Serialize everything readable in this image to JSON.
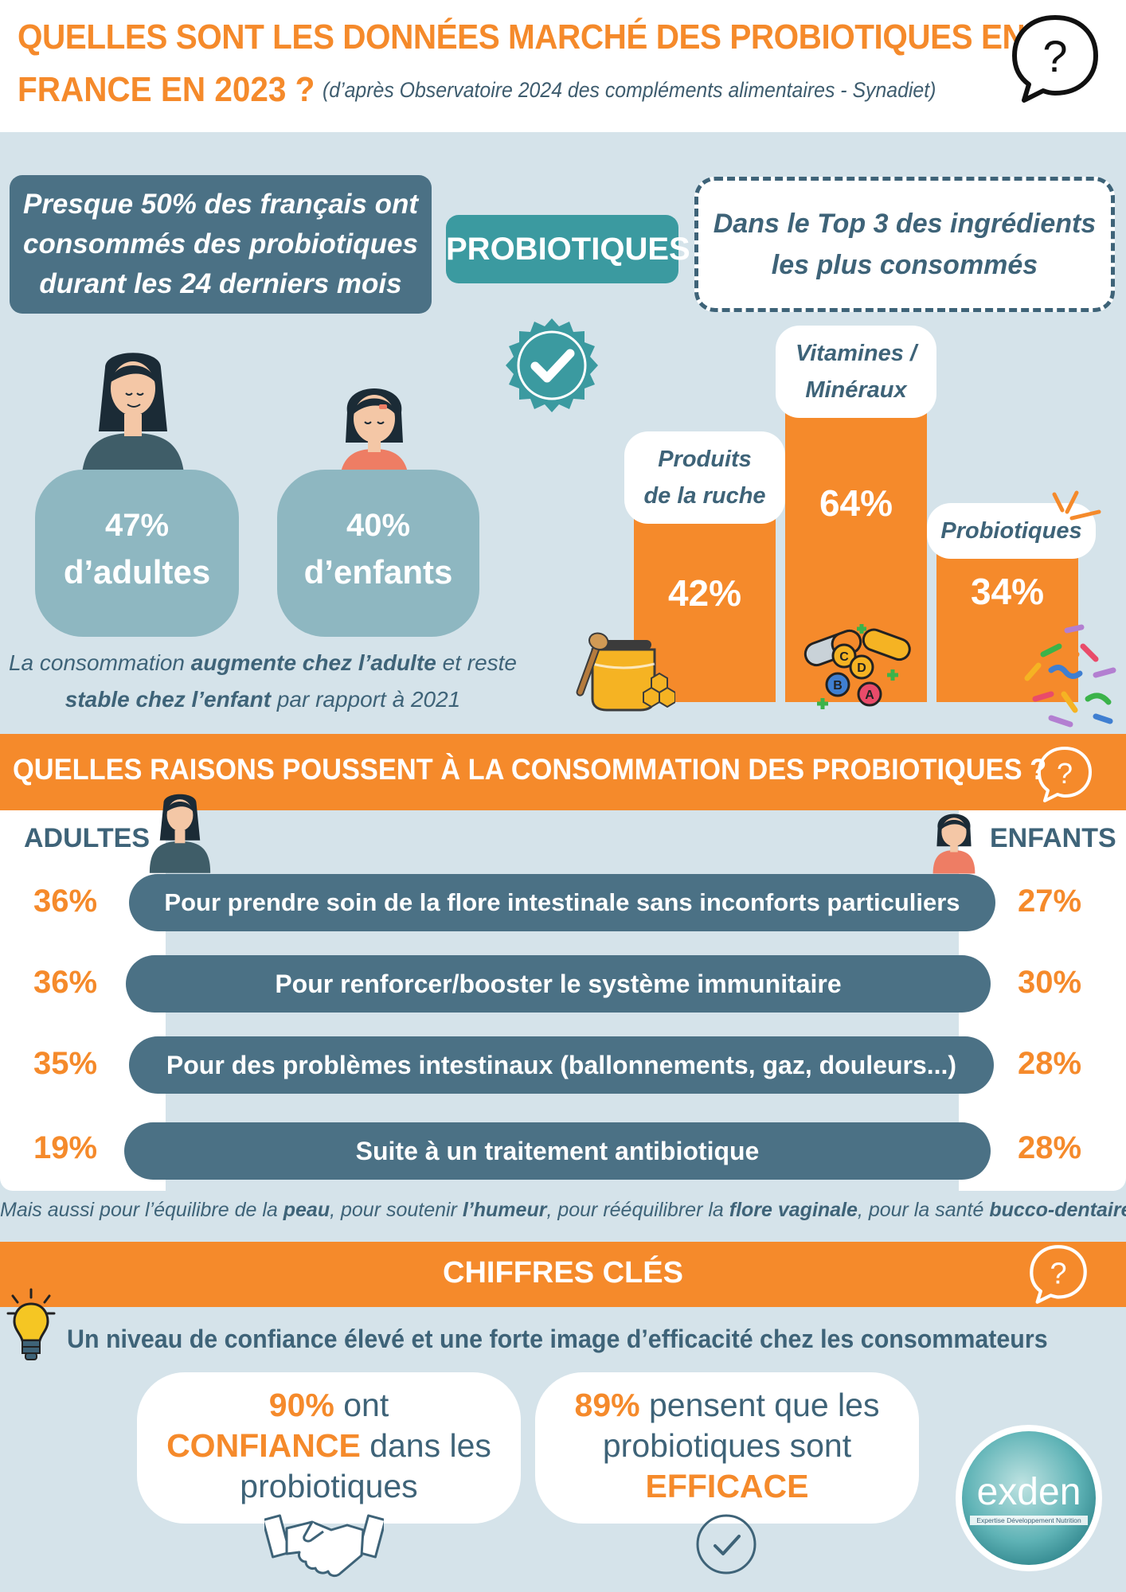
{
  "header": {
    "title_line1": "QUELLES SONT LES DONNÉES MARCHÉ DES PROBIOTIQUES EN",
    "title_line2": "FRANCE EN 2023 ?",
    "source": "(d’après Observatoire 2024 des compléments alimentaires - Synadiet)",
    "question_mark": "?"
  },
  "overview": {
    "headline_line1": "Presque 50% des français ont",
    "headline_line2": "consommés des probiotiques",
    "headline_line3": "durant les 24 derniers mois",
    "probiotiques_label": "PROBIOTIQUES",
    "top3_line1": "Dans le Top 3 des ingrédients",
    "top3_line2": "les plus consommés",
    "adults_pct": "47%",
    "adults_label": "d’adultes",
    "children_pct": "40%",
    "children_label": "d’enfants",
    "note_part1": "La consommation ",
    "note_bold1": "augmente chez l’adulte",
    "note_part2": " et reste",
    "note_bold2": "stable chez l’enfant",
    "note_part3": " par rapport à 2021"
  },
  "chart_data": {
    "type": "bar",
    "categories": [
      "Produits de la ruche",
      "Vitamines / Minéraux",
      "Probiotiques"
    ],
    "label_lines": [
      [
        "Produits",
        "de la ruche"
      ],
      [
        "Vitamines /",
        "Minéraux"
      ],
      [
        "Probiotiques"
      ]
    ],
    "values": [
      42,
      64,
      34
    ],
    "value_labels": [
      "42%",
      "64%",
      "34%"
    ],
    "color": "#f58a2b"
  },
  "reasons": {
    "title": "QUELLES RAISONS POUSSENT À LA CONSOMMATION DES PROBIOTIQUES ?",
    "adults_header": "ADULTES",
    "children_header": "ENFANTS",
    "items": [
      {
        "label": "Pour prendre soin de la flore intestinale sans inconforts particuliers",
        "adults": "36%",
        "children": "27%"
      },
      {
        "label": "Pour renforcer/booster le système immunitaire",
        "adults": "36%",
        "children": "30%"
      },
      {
        "label": "Pour des problèmes intestinaux (ballonnements, gaz, douleurs...)",
        "adults": "35%",
        "children": "28%"
      },
      {
        "label": "Suite à un traitement antibiotique",
        "adults": "19%",
        "children": "28%"
      }
    ],
    "also_t1": "Mais aussi pour l’équilibre de la ",
    "also_b1": "peau",
    "also_t2": ", pour soutenir ",
    "also_b2": "l’humeur",
    "also_t3": ", pour rééquilibrer la ",
    "also_b3": "flore vaginale",
    "also_t4": ", pour la santé ",
    "also_b4": "bucco-dentaire"
  },
  "key_figures": {
    "title": "CHIFFRES CLÉS",
    "confidence_line": "Un niveau de confiance élevé et une forte image d’efficacité chez les consommateurs",
    "card1_pct": "90%",
    "card1_t1": " ont",
    "card1_hl": "CONFIANCE",
    "card1_t2": " dans les",
    "card1_t3": "probiotiques",
    "card2_pct": "89%",
    "card2_t1": " pensent que les",
    "card2_t2": "probiotiques sont",
    "card2_hl": "EFFICACE"
  },
  "logo": {
    "name": "exden",
    "tagline": "Expertise Développement Nutrition"
  },
  "colors": {
    "orange": "#f58a2b",
    "dark_blue": "#4b7185",
    "teal": "#3b9aa0",
    "light_blue_bg": "#d5e3ea",
    "stat_blue": "#8eb7c1"
  }
}
